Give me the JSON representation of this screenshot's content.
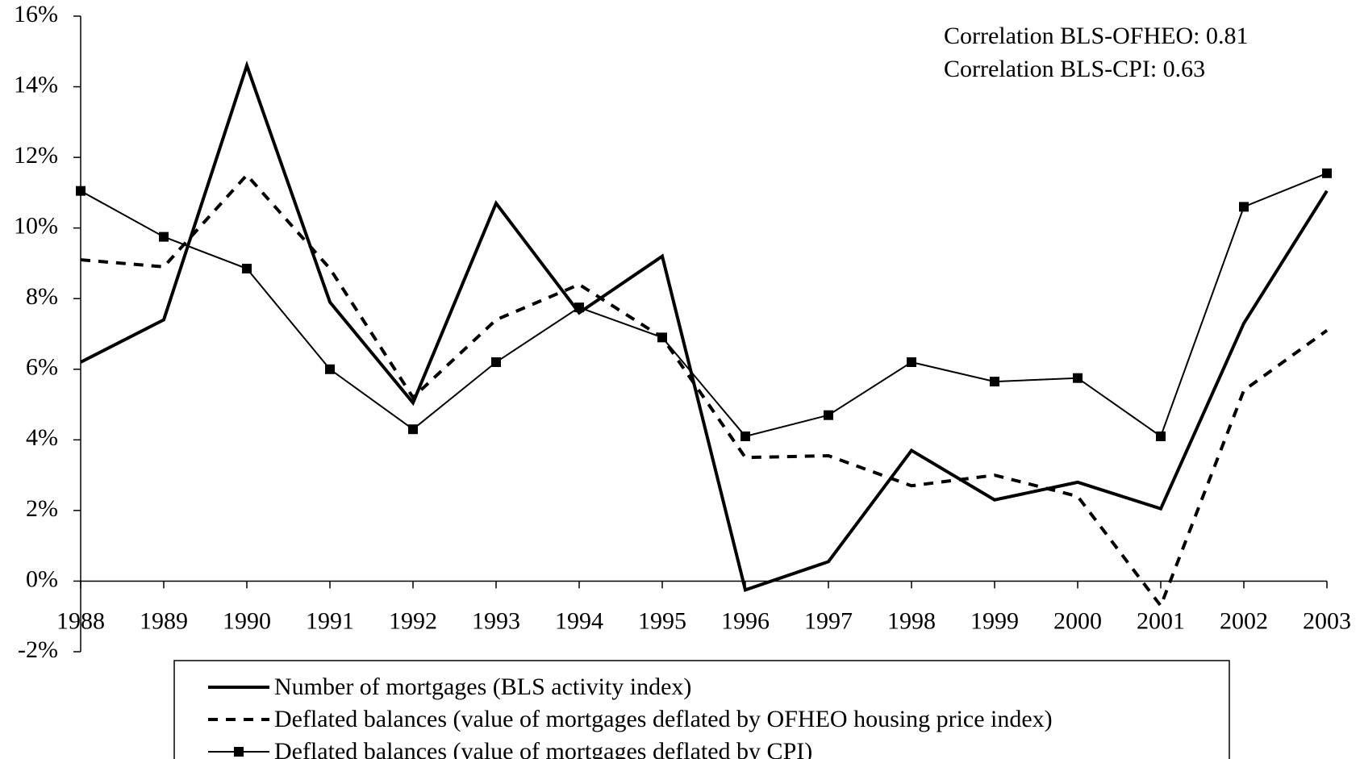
{
  "chart_data": {
    "type": "line",
    "categories": [
      "1988",
      "1989",
      "1990",
      "1991",
      "1992",
      "1993",
      "1994",
      "1995",
      "1996",
      "1997",
      "1998",
      "1999",
      "2000",
      "2001",
      "2002",
      "2003"
    ],
    "series": [
      {
        "name": "Number of mortgages (BLS activity index)",
        "color": "#000000",
        "line_style": "bold",
        "values": [
          6.2,
          7.4,
          14.6,
          7.9,
          5.05,
          10.7,
          7.6,
          9.2,
          -0.25,
          0.55,
          3.7,
          2.3,
          2.8,
          2.05,
          7.3,
          11.05
        ]
      },
      {
        "name": "Deflated balances (value of mortgages deflated by OFHEO housing price index)",
        "color": "#000000",
        "line_style": "dashed",
        "values": [
          9.1,
          8.9,
          11.5,
          8.85,
          5.2,
          7.4,
          8.4,
          6.9,
          3.5,
          3.55,
          2.7,
          3.0,
          2.4,
          -0.7,
          5.4,
          7.1
        ]
      },
      {
        "name": "Deflated balances (value of mortgages deflated by CPI)",
        "color": "#000000",
        "line_style": "thin",
        "marker": "square",
        "values": [
          11.05,
          9.75,
          8.85,
          6.0,
          4.3,
          6.2,
          7.75,
          6.9,
          4.1,
          4.7,
          6.2,
          5.65,
          5.75,
          4.1,
          10.6,
          11.55
        ]
      }
    ],
    "ylim": [
      -2,
      16
    ],
    "yticks": [
      {
        "value": -2,
        "label": "-2%"
      },
      {
        "value": 0,
        "label": "0%"
      },
      {
        "value": 2,
        "label": "2%"
      },
      {
        "value": 4,
        "label": "4%"
      },
      {
        "value": 6,
        "label": "6%"
      },
      {
        "value": 8,
        "label": "8%"
      },
      {
        "value": 10,
        "label": "10%"
      },
      {
        "value": 12,
        "label": "12%"
      },
      {
        "value": 14,
        "label": "14%"
      },
      {
        "value": 16,
        "label": "16%"
      }
    ],
    "annotations": [
      "Correlation BLS-OFHEO: 0.81",
      "Correlation BLS-CPI: 0.63"
    ],
    "grid": false
  }
}
